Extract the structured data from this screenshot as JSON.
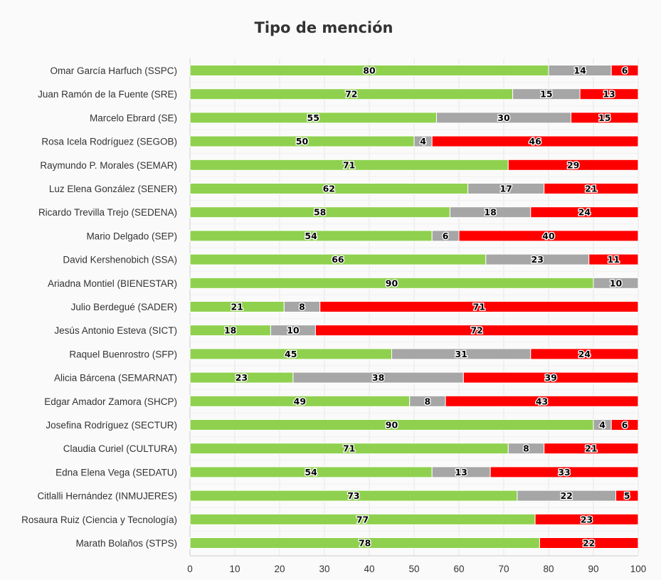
{
  "chart_data": {
    "type": "bar",
    "orientation": "horizontal",
    "stacked": true,
    "title": "Tipo de mención",
    "xlabel": "",
    "ylabel": "",
    "xlim": [
      0,
      100
    ],
    "xticks": [
      0,
      10,
      20,
      30,
      40,
      50,
      60,
      70,
      80,
      90,
      100
    ],
    "grid": true,
    "legend": "none",
    "categories": [
      "Omar García Harfuch (SSPC)",
      "Juan Ramón de la Fuente (SRE)",
      "Marcelo Ebrard (SE)",
      "Rosa Icela Rodríguez (SEGOB)",
      "Raymundo P. Morales (SEMAR)",
      "Luz Elena González (SENER)",
      "Ricardo Trevilla Trejo (SEDENA)",
      "Mario Delgado (SEP)",
      "David Kershenobich (SSA)",
      "Ariadna Montiel (BIENESTAR)",
      "Julio Berdegué (SADER)",
      "Jesús Antonio Esteva (SICT)",
      "Raquel Buenrostro (SFP)",
      "Alicia Bárcena (SEMARNAT)",
      "Edgar Amador Zamora (SHCP)",
      "Josefina Rodríguez (SECTUR)",
      "Claudia Curiel (CULTURA)",
      "Edna Elena Vega (SEDATU)",
      "Citlalli Hernández (INMUJERES)",
      "Rosaura Ruiz (Ciencia y Tecnología)",
      "Marath Bolaños (STPS)"
    ],
    "series": [
      {
        "color": "#8fd14f",
        "values": [
          80,
          72,
          55,
          50,
          71,
          62,
          58,
          54,
          66,
          90,
          21,
          18,
          45,
          23,
          49,
          90,
          71,
          54,
          73,
          77,
          78
        ]
      },
      {
        "color": "#a6a6a6",
        "values": [
          14,
          15,
          30,
          4,
          0,
          17,
          18,
          6,
          23,
          10,
          8,
          10,
          31,
          38,
          8,
          4,
          8,
          13,
          22,
          0,
          0
        ]
      },
      {
        "color": "#ff0000",
        "values": [
          6,
          13,
          15,
          46,
          29,
          21,
          24,
          40,
          11,
          0,
          71,
          72,
          24,
          39,
          43,
          6,
          21,
          33,
          5,
          23,
          22
        ]
      }
    ]
  }
}
